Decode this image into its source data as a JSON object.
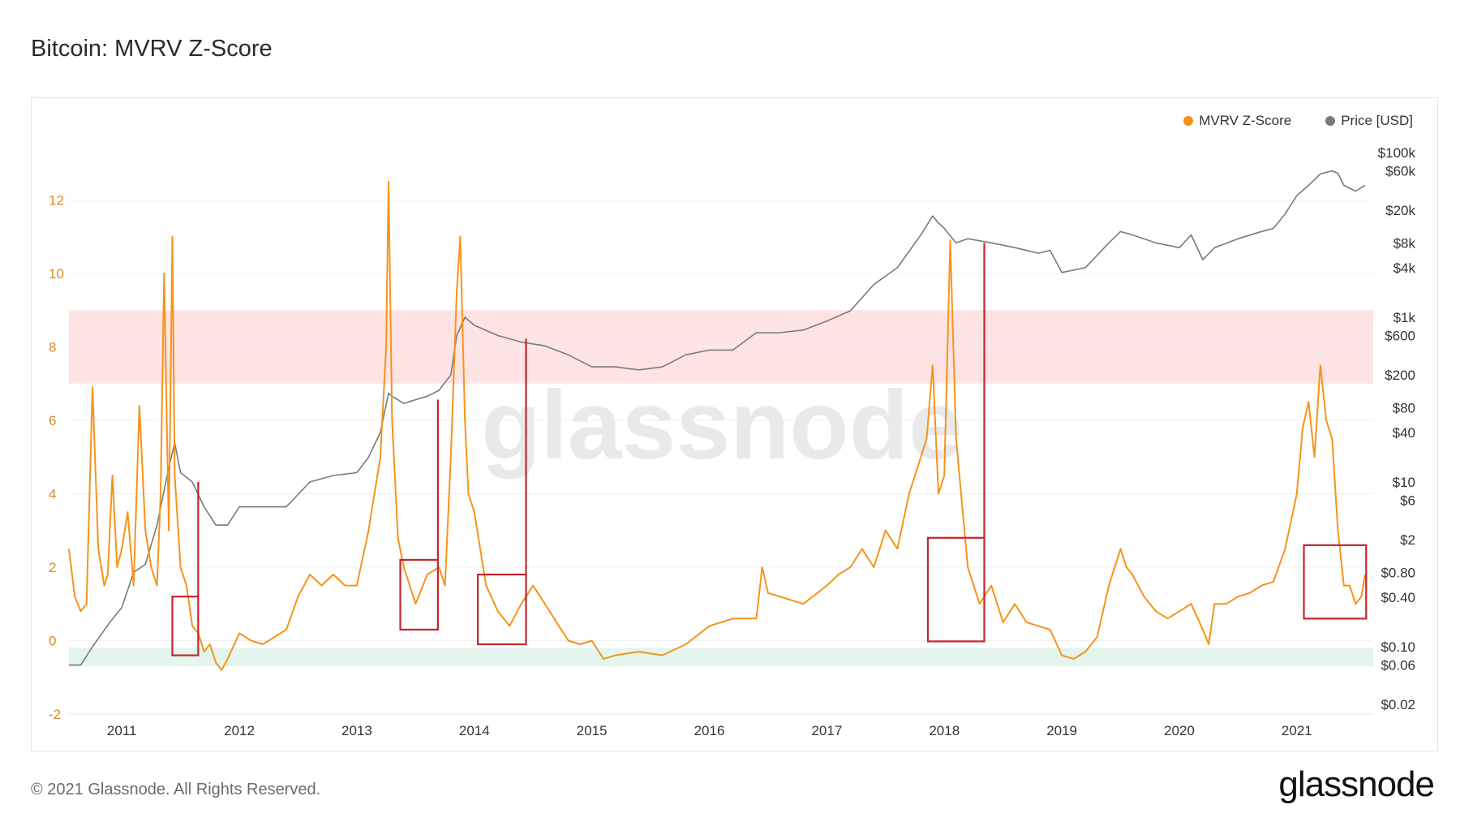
{
  "page": {
    "title": "Bitcoin: MVRV Z-Score",
    "copyright": "© 2021 Glassnode. All Rights Reserved.",
    "logo": "glassnode",
    "watermark": "glassnode"
  },
  "legend": [
    {
      "name": "MVRV Z-Score",
      "color": "#f7931a"
    },
    {
      "name": "Price [USD]",
      "color": "#7a7a7a"
    }
  ],
  "chart_data": {
    "type": "line",
    "title": "Bitcoin: MVRV Z-Score",
    "x_ticks": [
      "2011",
      "2012",
      "2013",
      "2014",
      "2015",
      "2016",
      "2017",
      "2018",
      "2019",
      "2020",
      "2021"
    ],
    "y_left": {
      "ticks": [
        12,
        10,
        8,
        6,
        4,
        2,
        0,
        -2
      ],
      "ylim": [
        -2,
        13.8
      ]
    },
    "y_right": {
      "scale": "log",
      "ticks": [
        "$100k",
        "$60k",
        "$20k",
        "$8k",
        "$4k",
        "$1k",
        "$600",
        "$200",
        "$80",
        "$40",
        "$10",
        "$6",
        "$2",
        "$0.80",
        "$0.40",
        "$0.10",
        "$0.06",
        "$0.02"
      ],
      "tick_values": [
        100000,
        60000,
        20000,
        8000,
        4000,
        1000,
        600,
        200,
        80,
        40,
        10,
        6,
        2,
        0.8,
        0.4,
        0.1,
        0.06,
        0.02
      ]
    },
    "bands": [
      {
        "label": "",
        "from": 7,
        "to": 9,
        "color": "#fde3e3"
      },
      {
        "label": "",
        "from": -0.7,
        "to": -0.2,
        "color": "#e3f5ec"
      }
    ],
    "series": [
      {
        "name": "MVRV Z-Score",
        "axis": "left",
        "color": "#f7931a",
        "x": [
          2010.55,
          2010.6,
          2010.65,
          2010.7,
          2010.75,
          2010.8,
          2010.85,
          2010.88,
          2010.92,
          2010.96,
          2011.0,
          2011.05,
          2011.1,
          2011.15,
          2011.2,
          2011.25,
          2011.3,
          2011.33,
          2011.36,
          2011.4,
          2011.43,
          2011.45,
          2011.5,
          2011.55,
          2011.6,
          2011.65,
          2011.7,
          2011.75,
          2011.8,
          2011.85,
          2011.9,
          2012.0,
          2012.1,
          2012.2,
          2012.3,
          2012.4,
          2012.5,
          2012.6,
          2012.7,
          2012.8,
          2012.9,
          2013.0,
          2013.1,
          2013.2,
          2013.25,
          2013.27,
          2013.3,
          2013.35,
          2013.4,
          2013.5,
          2013.6,
          2013.7,
          2013.75,
          2013.8,
          2013.85,
          2013.88,
          2013.92,
          2013.95,
          2014.0,
          2014.05,
          2014.1,
          2014.2,
          2014.3,
          2014.4,
          2014.5,
          2014.6,
          2014.7,
          2014.8,
          2014.9,
          2015.0,
          2015.1,
          2015.2,
          2015.4,
          2015.6,
          2015.8,
          2016.0,
          2016.2,
          2016.4,
          2016.45,
          2016.5,
          2016.6,
          2016.8,
          2017.0,
          2017.1,
          2017.2,
          2017.3,
          2017.4,
          2017.5,
          2017.6,
          2017.7,
          2017.8,
          2017.85,
          2017.9,
          2017.95,
          2018.0,
          2018.05,
          2018.1,
          2018.2,
          2018.3,
          2018.4,
          2018.5,
          2018.6,
          2018.7,
          2018.8,
          2018.9,
          2019.0,
          2019.1,
          2019.2,
          2019.3,
          2019.4,
          2019.5,
          2019.55,
          2019.6,
          2019.7,
          2019.8,
          2019.9,
          2020.0,
          2020.1,
          2020.2,
          2020.25,
          2020.3,
          2020.4,
          2020.5,
          2020.6,
          2020.7,
          2020.8,
          2020.9,
          2021.0,
          2021.05,
          2021.1,
          2021.15,
          2021.2,
          2021.25,
          2021.3,
          2021.35,
          2021.4,
          2021.45,
          2021.5,
          2021.55,
          2021.58
        ],
        "values": [
          2.5,
          1.2,
          0.8,
          1.0,
          6.9,
          2.5,
          1.5,
          1.8,
          4.5,
          2.0,
          2.5,
          3.5,
          1.5,
          6.4,
          3.0,
          2.0,
          1.5,
          4.0,
          10.0,
          3.0,
          11.0,
          4.5,
          2.0,
          1.5,
          0.4,
          0.2,
          -0.3,
          -0.1,
          -0.6,
          -0.8,
          -0.5,
          0.2,
          0.0,
          -0.1,
          0.1,
          0.3,
          1.2,
          1.8,
          1.5,
          1.8,
          1.5,
          1.5,
          3.0,
          5.0,
          8.0,
          12.5,
          6.0,
          2.8,
          2.0,
          1.0,
          1.8,
          2.0,
          1.5,
          5.0,
          9.5,
          11.0,
          6.0,
          4.0,
          3.5,
          2.5,
          1.5,
          0.8,
          0.4,
          1.0,
          1.5,
          1.0,
          0.5,
          0.0,
          -0.1,
          0.0,
          -0.5,
          -0.4,
          -0.3,
          -0.4,
          -0.1,
          0.4,
          0.6,
          0.6,
          2.0,
          1.3,
          1.2,
          1.0,
          1.5,
          1.8,
          2.0,
          2.5,
          2.0,
          3.0,
          2.5,
          4.0,
          5.0,
          5.5,
          7.5,
          4.0,
          4.5,
          10.9,
          5.5,
          2.0,
          1.0,
          1.5,
          0.5,
          1.0,
          0.5,
          0.4,
          0.3,
          -0.4,
          -0.5,
          -0.3,
          0.1,
          1.5,
          2.5,
          2.0,
          1.8,
          1.2,
          0.8,
          0.6,
          0.8,
          1.0,
          0.3,
          -0.1,
          1.0,
          1.0,
          1.2,
          1.3,
          1.5,
          1.6,
          2.5,
          4.0,
          5.8,
          6.5,
          5.0,
          7.5,
          6.0,
          5.5,
          3.0,
          1.5,
          1.5,
          1.0,
          1.2,
          1.8
        ]
      },
      {
        "name": "Price [USD]",
        "axis": "right",
        "color": "#7a7a7a",
        "x": [
          2010.55,
          2010.65,
          2010.75,
          2010.9,
          2011.0,
          2011.1,
          2011.2,
          2011.3,
          2011.4,
          2011.45,
          2011.5,
          2011.6,
          2011.7,
          2011.8,
          2011.9,
          2012.0,
          2012.2,
          2012.4,
          2012.6,
          2012.8,
          2013.0,
          2013.1,
          2013.2,
          2013.27,
          2013.3,
          2013.4,
          2013.5,
          2013.6,
          2013.7,
          2013.8,
          2013.85,
          2013.92,
          2014.0,
          2014.2,
          2014.4,
          2014.6,
          2014.8,
          2015.0,
          2015.2,
          2015.4,
          2015.6,
          2015.8,
          2016.0,
          2016.2,
          2016.4,
          2016.6,
          2016.8,
          2017.0,
          2017.2,
          2017.4,
          2017.6,
          2017.8,
          2017.9,
          2017.95,
          2018.0,
          2018.1,
          2018.2,
          2018.4,
          2018.6,
          2018.8,
          2018.9,
          2019.0,
          2019.2,
          2019.4,
          2019.5,
          2019.6,
          2019.8,
          2020.0,
          2020.1,
          2020.2,
          2020.3,
          2020.5,
          2020.7,
          2020.8,
          2020.9,
          2021.0,
          2021.1,
          2021.2,
          2021.3,
          2021.35,
          2021.4,
          2021.5,
          2021.58
        ],
        "values": [
          0.06,
          0.06,
          0.1,
          0.2,
          0.3,
          0.8,
          1.0,
          3.0,
          15,
          30,
          13,
          10,
          5,
          3,
          3,
          5,
          5,
          5,
          10,
          12,
          13,
          20,
          40,
          120,
          110,
          90,
          100,
          110,
          130,
          200,
          600,
          1000,
          800,
          600,
          500,
          450,
          350,
          250,
          250,
          230,
          250,
          350,
          400,
          400,
          650,
          650,
          700,
          900,
          1200,
          2500,
          4000,
          10000,
          17000,
          14000,
          12000,
          8000,
          9000,
          8000,
          7000,
          6000,
          6500,
          3500,
          4000,
          8000,
          11000,
          10000,
          8000,
          7000,
          10000,
          5000,
          7000,
          9000,
          11000,
          12000,
          18000,
          30000,
          40000,
          55000,
          60000,
          56000,
          40000,
          34000,
          40000
        ]
      }
    ],
    "annotation_boxes": [
      {
        "x0": 2011.43,
        "x1": 2011.65,
        "y0": -0.4,
        "y1": 1.2
      },
      {
        "x0": 2013.37,
        "x1": 2013.69,
        "y0": 0.3,
        "y1": 2.2
      },
      {
        "x0": 2014.03,
        "x1": 2014.44,
        "y0": -0.1,
        "y1": 1.8
      },
      {
        "x0": 2017.86,
        "x1": 2018.34,
        "y0": -0.02,
        "y1": 2.8
      },
      {
        "x0": 2021.06,
        "x1": 2021.59,
        "y0": 0.6,
        "y1": 2.6
      }
    ],
    "annotation_lines": [
      {
        "x": 2011.65,
        "y_from": 1.2,
        "price_to": 10
      },
      {
        "x": 2013.69,
        "y_from": 2.2,
        "price_to": 100
      },
      {
        "x": 2014.44,
        "y_from": 1.8,
        "price_to": 550
      },
      {
        "x": 2018.34,
        "y_from": 2.8,
        "price_to": 8000
      }
    ],
    "grid": true,
    "legend_position": "top-right"
  }
}
